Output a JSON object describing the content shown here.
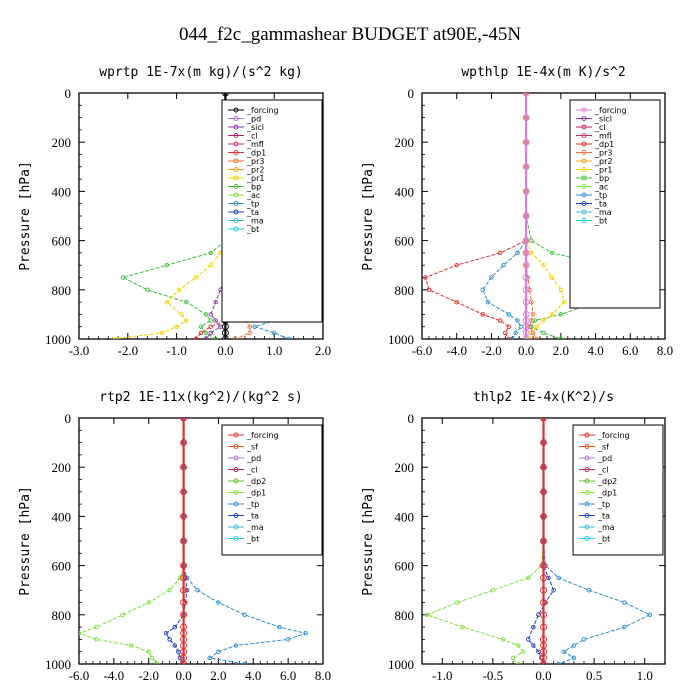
{
  "figure": {
    "title": "044_f2c_gammashear  BUDGET at90E,-45N"
  },
  "colors": {
    "forcing": "#d67fd6",
    "pd": "#b070e0",
    "sicl": "#8a3aa8",
    "cl": "#c02060",
    "mfl": "#c8306e",
    "dp1": "#e03030",
    "pr3": "#f07040",
    "pr2": "#f0a020",
    "pr1": "#f5d000",
    "bp": "#40c040",
    "ac": "#80e040",
    "tp": "#3090d0",
    "ta": "#2040c0",
    "ma": "#40b8d0",
    "bt": "#20d0e0",
    "sf": "#e05020",
    "dp2": "#60c030"
  },
  "chart_data": [
    {
      "type": "line",
      "title": "wprtp  1E-7x(m kg)/(s^2 kg)",
      "ylabel": "Pressure [hPa]",
      "xlim": [
        -3.0,
        2.0
      ],
      "ylim": [
        1000,
        0
      ],
      "xticks": [
        "-3.0",
        "-2.0",
        "-1.0",
        "0.0",
        "1.0",
        "2.0"
      ],
      "yticks": [
        "0",
        "200",
        "400",
        "600",
        "800",
        "1000"
      ],
      "y": [
        0,
        100,
        200,
        300,
        400,
        500,
        600,
        650,
        700,
        750,
        800,
        850,
        900,
        925,
        950,
        975,
        1000
      ],
      "legend": [
        "_forcing",
        "_pd",
        "_sicl",
        "_cl",
        "_mfl",
        "_dp1",
        "_pr3",
        "_pr2",
        "_pr1",
        "_bp",
        "_ac",
        "_tp",
        "_ta",
        "_ma",
        "_bt"
      ],
      "series": [
        {
          "name": "_bp",
          "color": "#40c040",
          "values": [
            0,
            0,
            0,
            0,
            0,
            0,
            0,
            -0.3,
            -1.2,
            -2.1,
            -1.6,
            -0.8,
            -0.4,
            -0.3,
            -0.5,
            -0.4,
            -0.2
          ]
        },
        {
          "name": "_pr1",
          "color": "#f5d000",
          "values": [
            0,
            0,
            0,
            0,
            0,
            0,
            0,
            -0.1,
            -0.3,
            -0.6,
            -0.95,
            -1.2,
            -0.9,
            -0.8,
            -1.0,
            -1.3,
            -2.3
          ]
        },
        {
          "name": "_dp1",
          "color": "#e03030",
          "values": [
            0,
            0,
            0,
            0,
            0,
            0,
            0.05,
            0.3,
            1.0,
            1.6,
            1.7,
            0.8,
            0.2,
            0,
            -0.3,
            -0.5,
            -0.6
          ]
        },
        {
          "name": "_tp",
          "color": "#3090d0",
          "values": [
            0,
            0,
            0,
            0,
            0,
            0,
            0,
            0.1,
            0.4,
            0.8,
            1.1,
            1.2,
            1.4,
            1.0,
            0.6,
            1.0,
            1.3
          ]
        },
        {
          "name": "_pr3",
          "color": "#f07040",
          "values": [
            0,
            0,
            0,
            0,
            0,
            0,
            0,
            0,
            0,
            0.05,
            0.1,
            0.2,
            0.3,
            0.4,
            0.5,
            0.5,
            0.2
          ]
        },
        {
          "name": "_sicl",
          "color": "#8a3aa8",
          "values": [
            0,
            0,
            0,
            0,
            0,
            0,
            0,
            0,
            0,
            0,
            -0.1,
            -0.2,
            -0.3,
            -0.2,
            -0.1,
            -0.3,
            -0.4
          ]
        },
        {
          "name": "_forcing",
          "color": "#000000",
          "values": [
            0,
            0,
            0,
            0,
            0,
            0,
            0,
            0,
            0,
            0,
            0,
            0,
            0,
            0,
            0,
            0,
            0
          ]
        }
      ]
    },
    {
      "type": "line",
      "title": "wpthlp  1E-4x(m K)/s^2",
      "ylabel": "Pressure [hPa]",
      "xlim": [
        -6.0,
        8.0
      ],
      "ylim": [
        1000,
        0
      ],
      "xticks": [
        "-6.0",
        "-4.0",
        "-2.0",
        "0.0",
        "2.0",
        "4.0",
        "6.0",
        "8.0"
      ],
      "yticks": [
        "0",
        "200",
        "400",
        "600",
        "800",
        "1000"
      ],
      "y": [
        0,
        100,
        200,
        300,
        400,
        500,
        600,
        650,
        700,
        750,
        800,
        850,
        900,
        925,
        950,
        975,
        1000
      ],
      "legend": [
        "_forcing",
        "_sicl",
        "_cl",
        "_mfl",
        "_dp1",
        "_pr3",
        "_pr2",
        "_pr1",
        "_bp",
        "_ac",
        "_tp",
        "_ta",
        "_ma",
        "_bt"
      ],
      "series": [
        {
          "name": "_dp1",
          "color": "#e03030",
          "values": [
            0,
            0,
            0,
            0,
            0,
            0,
            0,
            -1.5,
            -4.0,
            -5.8,
            -5.6,
            -4.0,
            -2.5,
            -1.5,
            -1.0,
            -1.2,
            -1.0
          ]
        },
        {
          "name": "_bp",
          "color": "#40c040",
          "values": [
            0,
            0,
            0,
            0,
            0,
            0,
            0.3,
            1.5,
            4.5,
            6.6,
            5.8,
            4.0,
            2.0,
            0.5,
            0.3,
            1.0,
            2.0
          ]
        },
        {
          "name": "_tp",
          "color": "#3090d0",
          "values": [
            0,
            0,
            0,
            0,
            0,
            0,
            0,
            -0.5,
            -1.3,
            -2.0,
            -2.5,
            -2.2,
            -1.0,
            -0.5,
            -0.3,
            -0.6,
            -0.8
          ]
        },
        {
          "name": "_pr1",
          "color": "#f5d000",
          "values": [
            0,
            0,
            0,
            0,
            0,
            0,
            0,
            0.3,
            1.0,
            1.5,
            2.0,
            2.2,
            1.5,
            1.0,
            0.6,
            0.3,
            0.2
          ]
        },
        {
          "name": "_pr3",
          "color": "#f07040",
          "values": [
            0,
            0,
            0,
            0,
            0,
            0,
            0,
            0,
            0,
            0.1,
            0.2,
            0.3,
            0.4,
            0.3,
            0.2,
            0.4,
            0.6
          ]
        },
        {
          "name": "_forcing",
          "color": "#d67fd6",
          "values": [
            0,
            0,
            0,
            0,
            0,
            0,
            0,
            0,
            0,
            0,
            0,
            0,
            0,
            0,
            0,
            0,
            0
          ]
        }
      ]
    },
    {
      "type": "line",
      "title": "rtp2  1E-11x(kg^2)/(kg^2 s)",
      "ylabel": "Pressure [hPa]",
      "xlim": [
        -6.0,
        8.0
      ],
      "ylim": [
        1000,
        0
      ],
      "xticks": [
        "-6.0",
        "-4.0",
        "-2.0",
        "0.0",
        "2.0",
        "4.0",
        "6.0",
        "8.0"
      ],
      "yticks": [
        "0",
        "200",
        "400",
        "600",
        "800",
        "1000"
      ],
      "y": [
        0,
        100,
        200,
        300,
        400,
        500,
        600,
        650,
        700,
        750,
        800,
        850,
        875,
        900,
        925,
        950,
        975,
        1000
      ],
      "legend": [
        "_forcing",
        "_sf",
        "_pd",
        "_cl",
        "_dp2",
        "_dp1",
        "_tp",
        "_ta",
        "_ma",
        "_bt"
      ],
      "series": [
        {
          "name": "_dp1",
          "color": "#80e040",
          "values": [
            0,
            0,
            0,
            0,
            0,
            0,
            0,
            -0.2,
            -0.8,
            -2.0,
            -3.5,
            -5.0,
            -6.0,
            -5.0,
            -3.0,
            -2.0,
            -1.8,
            -1.5
          ]
        },
        {
          "name": "_tp",
          "color": "#3090d0",
          "values": [
            0,
            0,
            0,
            0,
            0,
            0,
            0,
            0.2,
            0.8,
            2.0,
            3.5,
            5.5,
            7.0,
            6.0,
            3.0,
            2.0,
            1.5,
            3.5
          ]
        },
        {
          "name": "_ta",
          "color": "#2040c0",
          "values": [
            0,
            0,
            0,
            0,
            0,
            0,
            0,
            0.1,
            0.2,
            0.1,
            0,
            -0.5,
            -1.0,
            -0.8,
            -0.5,
            -0.3,
            -0.2,
            -0.1
          ]
        },
        {
          "name": "_forcing",
          "color": "#e03030",
          "values": [
            0,
            0,
            0,
            0,
            0,
            0,
            0,
            0,
            0,
            0,
            0,
            0,
            0,
            0,
            0,
            0,
            0,
            0
          ]
        }
      ]
    },
    {
      "type": "line",
      "title": "thlp2  1E-4x(K^2)/s",
      "ylabel": "Pressure [hPa]",
      "xlim": [
        -1.2,
        1.2
      ],
      "ylim": [
        1000,
        0
      ],
      "xticks": [
        "-1.0",
        "-0.5",
        "0.0",
        "0.5",
        "1.0"
      ],
      "xtickvals": [
        -1.0,
        -0.5,
        0.0,
        0.5,
        1.0
      ],
      "yticks": [
        "0",
        "200",
        "400",
        "600",
        "800",
        "1000"
      ],
      "y": [
        0,
        100,
        200,
        300,
        400,
        500,
        600,
        650,
        700,
        750,
        800,
        850,
        900,
        925,
        950,
        975,
        1000
      ],
      "legend": [
        "_forcing",
        "_sf",
        "_pd",
        "_cl",
        "_dp2",
        "_dp1",
        "_tp",
        "_ta",
        "_ma",
        "_bt"
      ],
      "series": [
        {
          "name": "_dp1",
          "color": "#80e040",
          "values": [
            0,
            0,
            0,
            0,
            0,
            0,
            -0.02,
            -0.15,
            -0.5,
            -0.85,
            -1.15,
            -0.8,
            -0.4,
            -0.25,
            -0.2,
            -0.3,
            -0.25
          ]
        },
        {
          "name": "_tp",
          "color": "#3090d0",
          "values": [
            0,
            0,
            0,
            0,
            0,
            0,
            0.02,
            0.15,
            0.45,
            0.8,
            1.05,
            0.8,
            0.4,
            0.3,
            0.2,
            0.3,
            0.15
          ]
        },
        {
          "name": "_ta",
          "color": "#2040c0",
          "values": [
            0,
            0,
            0,
            0,
            0,
            0,
            0,
            0.05,
            0.1,
            0.02,
            -0.05,
            -0.1,
            -0.15,
            -0.1,
            -0.05,
            -0.02,
            0
          ]
        },
        {
          "name": "_forcing",
          "color": "#e03030",
          "values": [
            0,
            0,
            0,
            0,
            0,
            0,
            0,
            0,
            0,
            0,
            0,
            0,
            0,
            0,
            0,
            0,
            0
          ]
        }
      ]
    }
  ]
}
